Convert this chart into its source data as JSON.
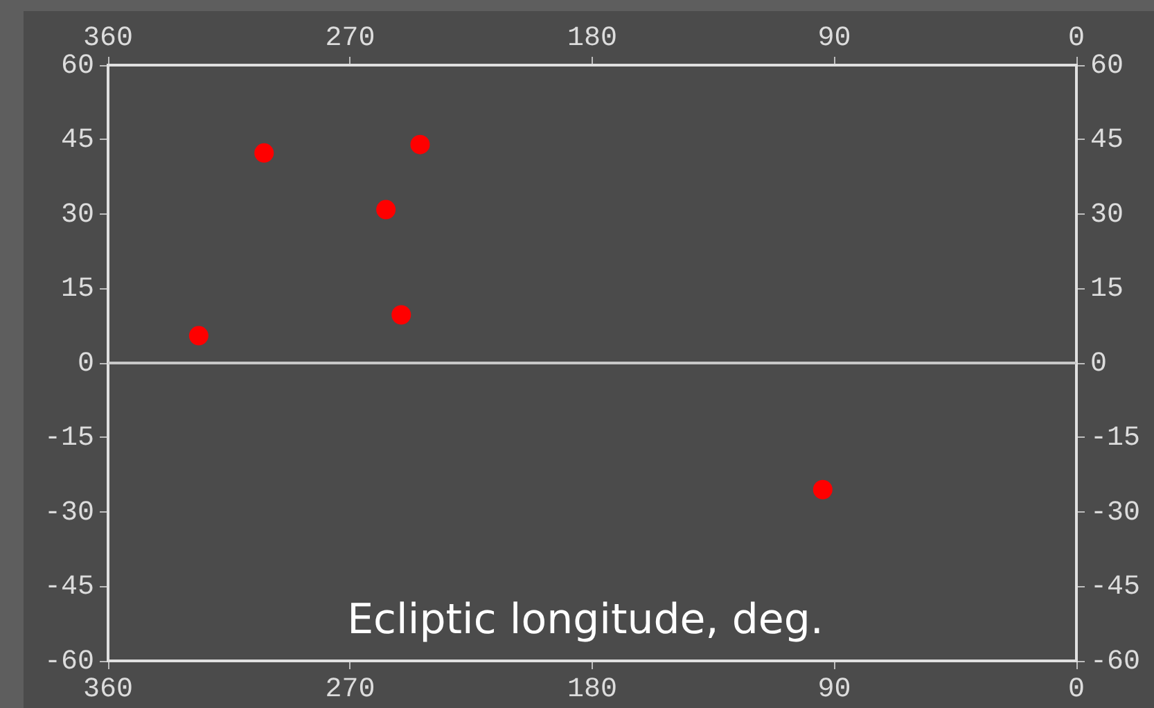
{
  "chart_data": {
    "type": "scatter",
    "xlabel": "Ecliptic longitude, deg.",
    "x": [
      326.3,
      302,
      256.7,
      251,
      244,
      94.3
    ],
    "values": [
      5.5,
      42.3,
      30.9,
      9.7,
      44,
      -25.5
    ],
    "color": "#ff0000",
    "marker": "circle",
    "grid": false,
    "xlim": [
      360,
      0
    ],
    "xticks": [
      360,
      270,
      180,
      90,
      0
    ],
    "x2lim": [
      360,
      0
    ],
    "x2ticks": [
      360,
      270,
      180,
      90,
      0
    ],
    "ylim": [
      -60,
      60
    ],
    "yticks": [
      60,
      45,
      30,
      15,
      0,
      -15,
      -30,
      -45,
      -60
    ],
    "y2lim": [
      -60,
      60
    ],
    "y2ticks": [
      60,
      45,
      30,
      15,
      0,
      -15,
      -30,
      -45,
      -60
    ],
    "ref_lines": [
      {
        "axis": "y",
        "value": 0,
        "color": "#c8c8c8"
      }
    ]
  }
}
